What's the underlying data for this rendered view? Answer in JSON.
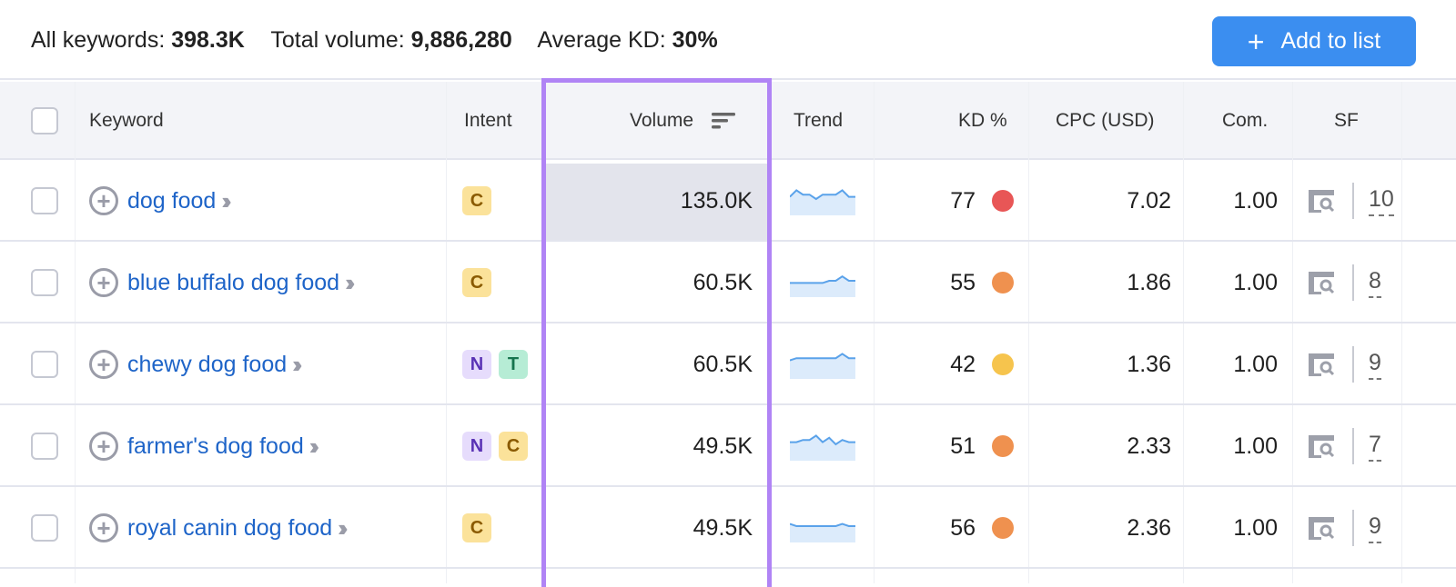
{
  "summary": {
    "all_keywords_label": "All keywords:",
    "all_keywords": "398.3K",
    "total_volume_label": "Total volume:",
    "total_volume": "9,886,280",
    "avg_kd_label": "Average KD:",
    "avg_kd": "30%"
  },
  "add_button": {
    "icon": "plus",
    "label": "Add to list"
  },
  "columns": {
    "keyword": "Keyword",
    "intent": "Intent",
    "volume": "Volume",
    "trend": "Trend",
    "kd": "KD %",
    "cpc": "CPC (USD)",
    "com": "Com.",
    "sf": "SF"
  },
  "intent_colors": {
    "C": {
      "bg": "#fbe29a",
      "fg": "#8a5a00"
    },
    "N": {
      "bg": "#e6dcfc",
      "fg": "#5a33b5"
    },
    "T": {
      "bg": "#b6ecd5",
      "fg": "#16744e"
    }
  },
  "rows": [
    {
      "keyword": "dog food",
      "intents": [
        "C"
      ],
      "volume": "135.0K",
      "trend": [
        6,
        9,
        7,
        7,
        5,
        7,
        7,
        7,
        9,
        6,
        6
      ],
      "kd": "77",
      "kd_color": "#e85656",
      "cpc": "7.02",
      "com": "1.00",
      "sf": "10"
    },
    {
      "keyword": "blue buffalo dog food",
      "intents": [
        "C"
      ],
      "volume": "60.5K",
      "trend": [
        4,
        4,
        4,
        4,
        4,
        4,
        5,
        5,
        7,
        5,
        5
      ],
      "kd": "55",
      "kd_color": "#ef914f",
      "cpc": "1.86",
      "com": "1.00",
      "sf": "8"
    },
    {
      "keyword": "chewy dog food",
      "intents": [
        "N",
        "T"
      ],
      "volume": "60.5K",
      "trend": [
        6,
        7,
        7,
        7,
        7,
        7,
        7,
        7,
        9,
        7,
        7
      ],
      "kd": "42",
      "kd_color": "#f6c44d",
      "cpc": "1.36",
      "com": "1.00",
      "sf": "9"
    },
    {
      "keyword": "farmer's dog food",
      "intents": [
        "N",
        "C"
      ],
      "volume": "49.5K",
      "trend": [
        6,
        6,
        7,
        7,
        9,
        6,
        8,
        5,
        7,
        6,
        6
      ],
      "kd": "51",
      "kd_color": "#ef914f",
      "cpc": "2.33",
      "com": "1.00",
      "sf": "7"
    },
    {
      "keyword": "royal canin dog food",
      "intents": [
        "C"
      ],
      "volume": "49.5K",
      "trend": [
        6,
        5,
        5,
        5,
        5,
        5,
        5,
        5,
        6,
        5,
        5
      ],
      "kd": "56",
      "kd_color": "#ef914f",
      "cpc": "2.36",
      "com": "1.00",
      "sf": "9"
    }
  ]
}
